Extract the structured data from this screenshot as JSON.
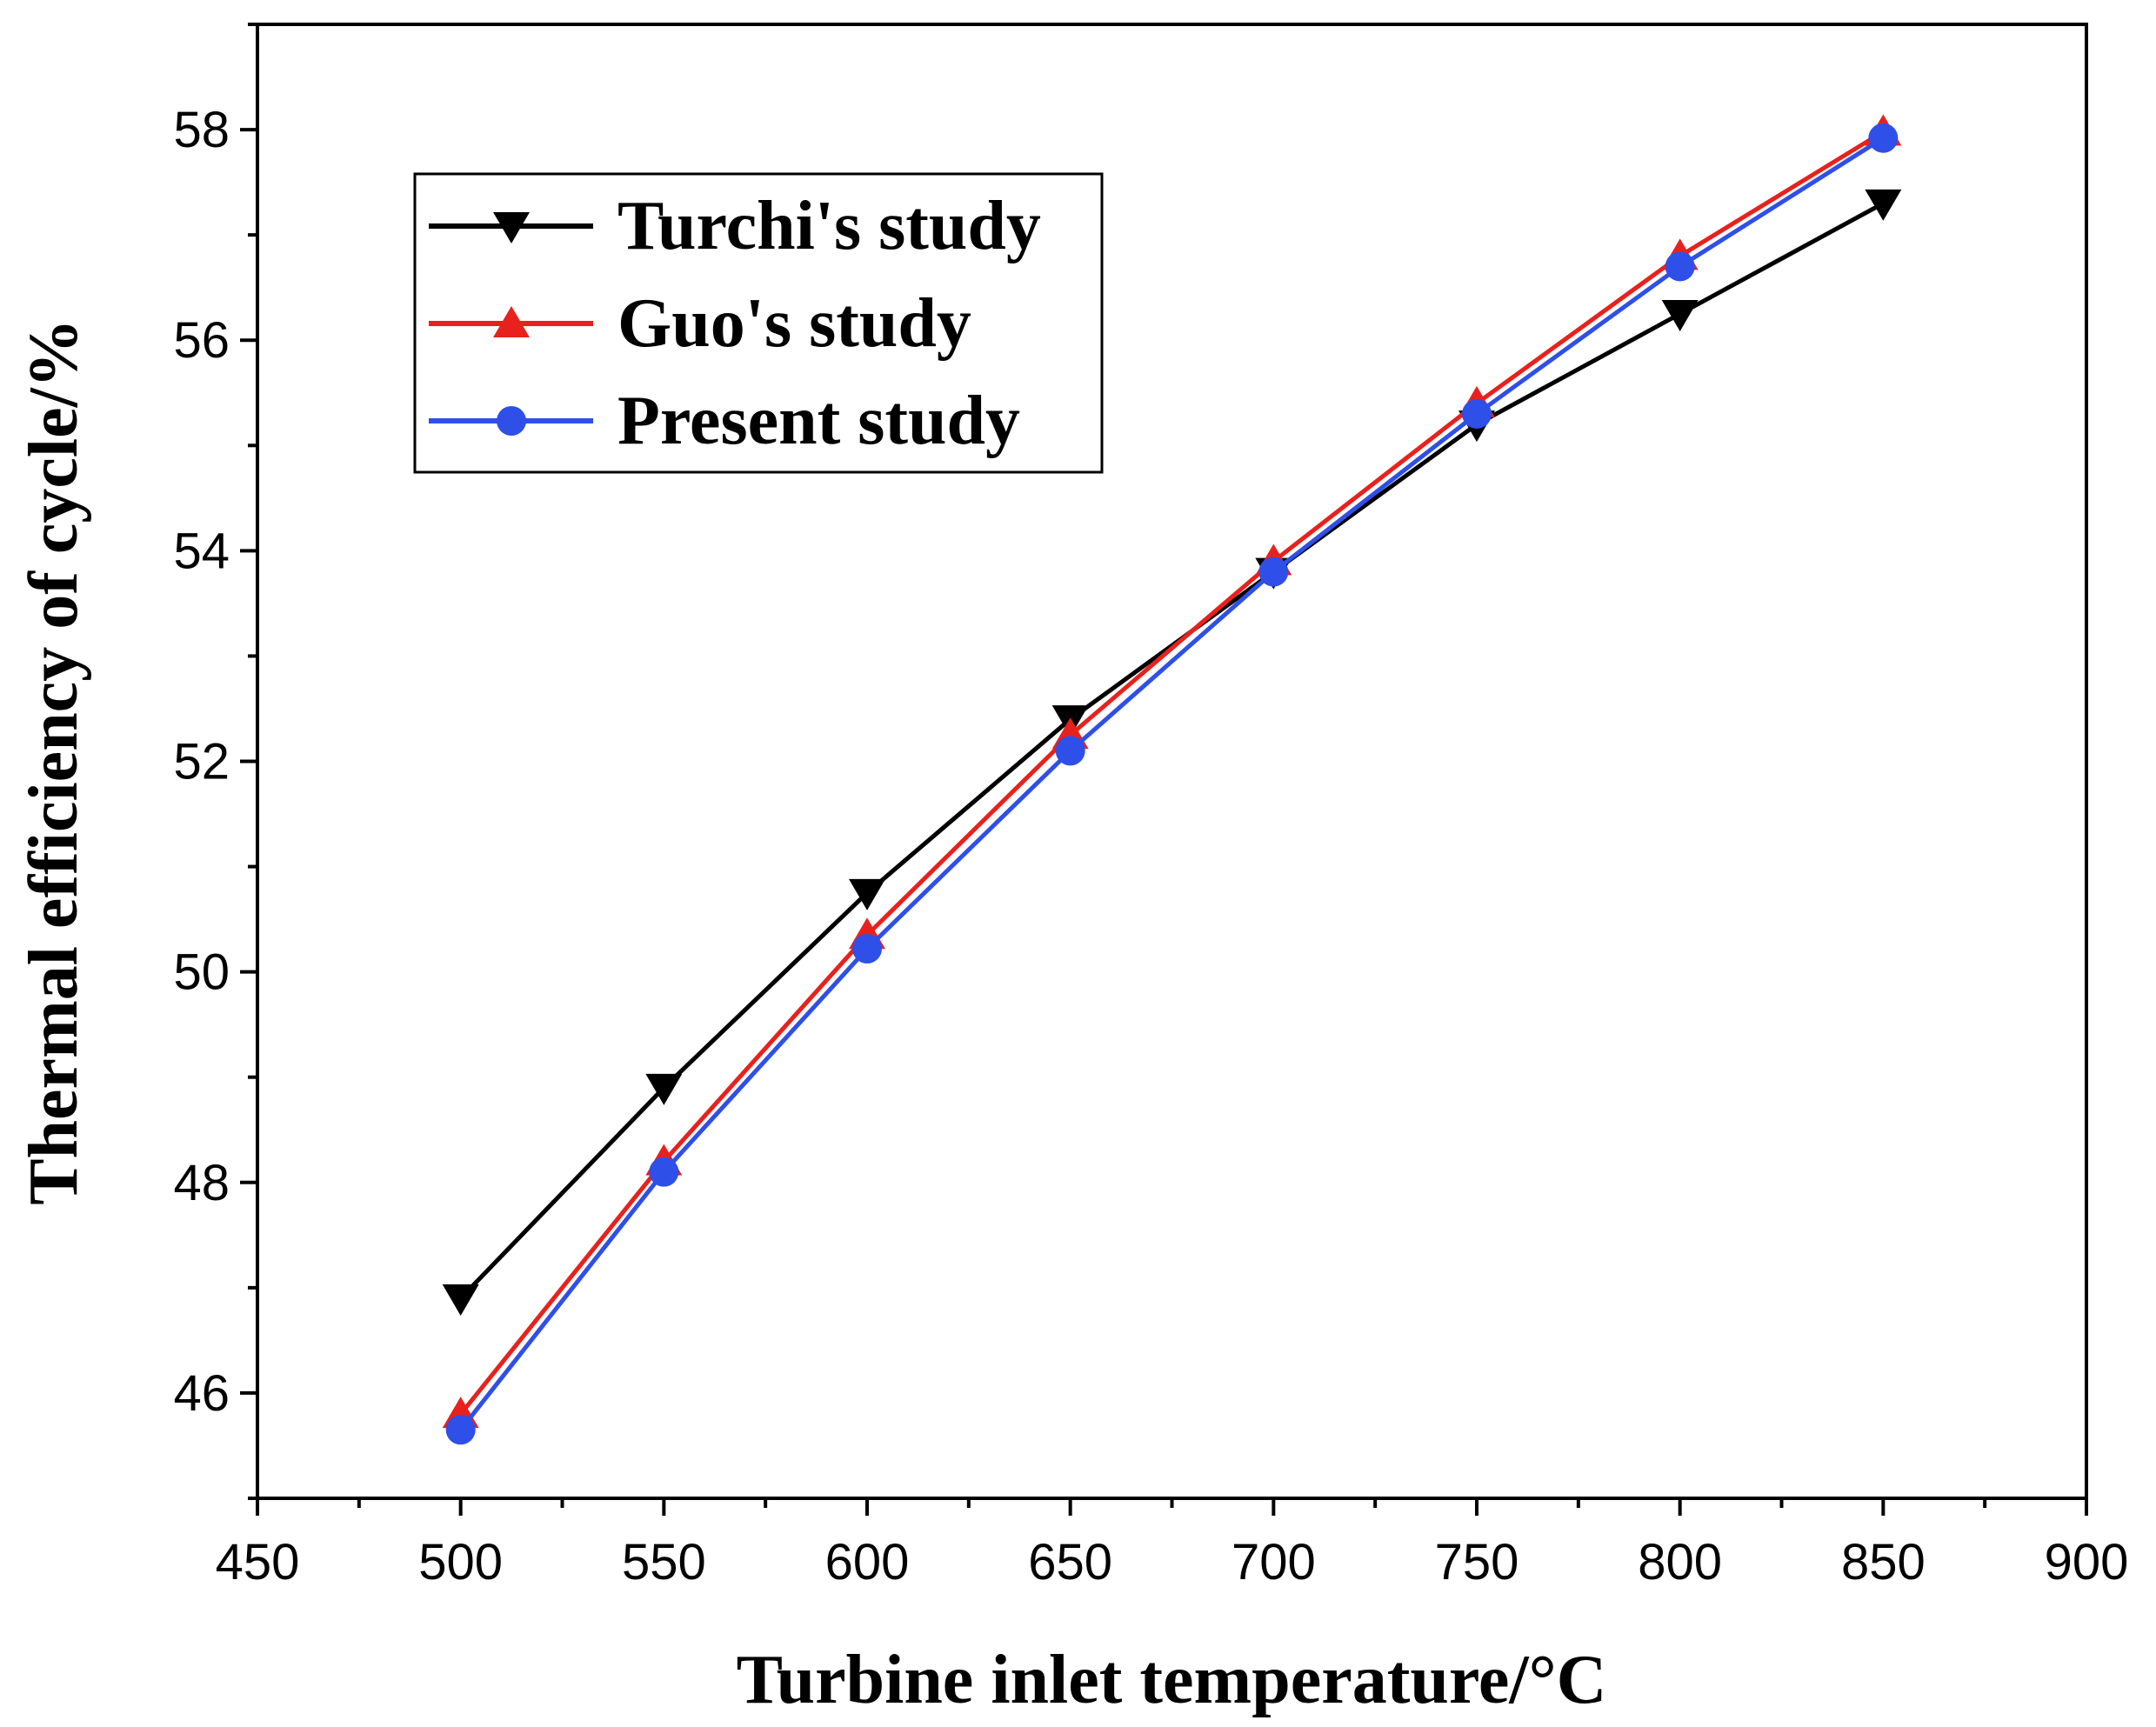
{
  "chart_data": {
    "type": "line",
    "title": "",
    "xlabel": "Turbine inlet temperature/°C",
    "ylabel": "Thermal efficiency of cycle/%",
    "xlim": [
      450,
      900
    ],
    "ylim": [
      45.0,
      59.0
    ],
    "xticks": [
      450,
      500,
      550,
      600,
      650,
      700,
      750,
      800,
      850,
      900
    ],
    "xtick_labels": [
      "450",
      "500",
      "550",
      "600",
      "650",
      "700",
      "750",
      "800",
      "850",
      "900"
    ],
    "yticks": [
      46,
      48,
      50,
      52,
      54,
      56,
      58
    ],
    "ytick_labels": [
      "46",
      "48",
      "50",
      "52",
      "54",
      "56",
      "58"
    ],
    "grid": false,
    "legend_position": "top-left",
    "x": [
      500,
      550,
      600,
      650,
      700,
      750,
      800,
      850
    ],
    "series": [
      {
        "name": "Turchi's study",
        "color": "#000000",
        "marker": "triangle-down",
        "values": [
          46.9,
          48.9,
          50.75,
          52.4,
          53.8,
          55.2,
          56.25,
          57.3
        ]
      },
      {
        "name": "Guo's study",
        "color": "#e8211d",
        "marker": "triangle-up",
        "values": [
          45.8,
          48.2,
          50.35,
          52.25,
          53.9,
          55.4,
          56.8,
          57.98
        ]
      },
      {
        "name": "Present study",
        "color": "#2e4fe8",
        "marker": "circle",
        "values": [
          45.65,
          48.1,
          50.22,
          52.1,
          53.8,
          55.3,
          56.7,
          57.92
        ]
      }
    ]
  }
}
